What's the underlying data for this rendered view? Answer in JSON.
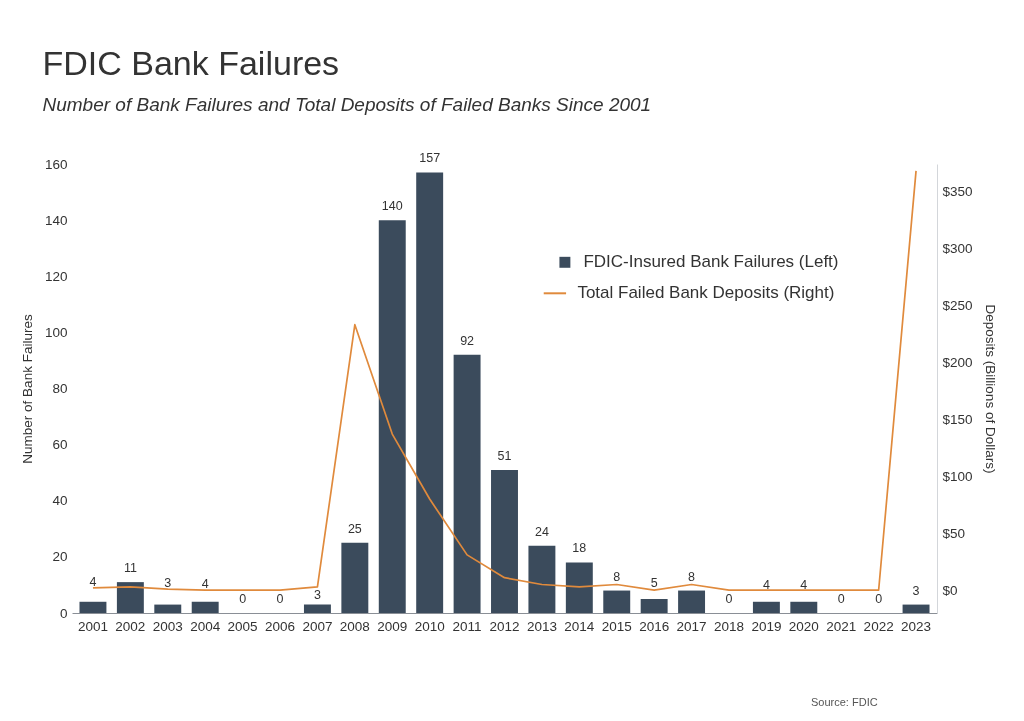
{
  "chart_data": {
    "type": "bar",
    "title": "FDIC Bank Failures",
    "subtitle": "Number of Bank Failures and Total Deposits of Failed Banks Since 2001",
    "ylabel": "Number of Bank Failures",
    "y2label": "Deposits (Billions of Dollars)",
    "categories": [
      "2001",
      "2002",
      "2003",
      "2004",
      "2005",
      "2006",
      "2007",
      "2008",
      "2009",
      "2010",
      "2011",
      "2012",
      "2013",
      "2014",
      "2015",
      "2016",
      "2017",
      "2018",
      "2019",
      "2020",
      "2021",
      "2022",
      "2023"
    ],
    "series": [
      {
        "name": "FDIC-Insured Bank Failures (Left)",
        "color": "#3b4b5c",
        "values": [
          4,
          11,
          3,
          4,
          0,
          0,
          3,
          25,
          140,
          157,
          92,
          51,
          24,
          18,
          8,
          5,
          8,
          0,
          4,
          4,
          0,
          0,
          3
        ],
        "value_labels": [
          "4",
          "11",
          "3",
          "4",
          "0",
          "0",
          "3",
          "25",
          "140",
          "157",
          "92",
          "51",
          "24",
          "18",
          "8",
          "5",
          "8",
          "0",
          "4",
          "4",
          "0",
          "0",
          "3"
        ]
      },
      {
        "name": "Total Failed Bank Deposits (Right)",
        "type": "line",
        "axis": "y2",
        "color": "#e08a3c",
        "values": [
          2,
          3,
          1,
          0,
          0,
          0,
          3,
          233,
          137,
          80,
          31,
          11,
          5,
          3,
          5,
          0,
          5,
          0,
          0,
          0,
          0,
          0,
          368
        ]
      }
    ],
    "ylim": [
      0,
      160
    ],
    "yticks": [
      0,
      20,
      40,
      60,
      80,
      100,
      120,
      140,
      160
    ],
    "y2lim": [
      -20,
      374
    ],
    "y2ticks": [
      {
        "value": 0,
        "label": "$0"
      },
      {
        "value": 50,
        "label": "$50"
      },
      {
        "value": 100,
        "label": "$100"
      },
      {
        "value": 150,
        "label": "$150"
      },
      {
        "value": 200,
        "label": "$200"
      },
      {
        "value": 250,
        "label": "$250"
      },
      {
        "value": 300,
        "label": "$300"
      },
      {
        "value": 350,
        "label": "$350"
      }
    ],
    "grid": false,
    "legend": "top right",
    "annotations": [
      "Source: FDIC"
    ]
  }
}
